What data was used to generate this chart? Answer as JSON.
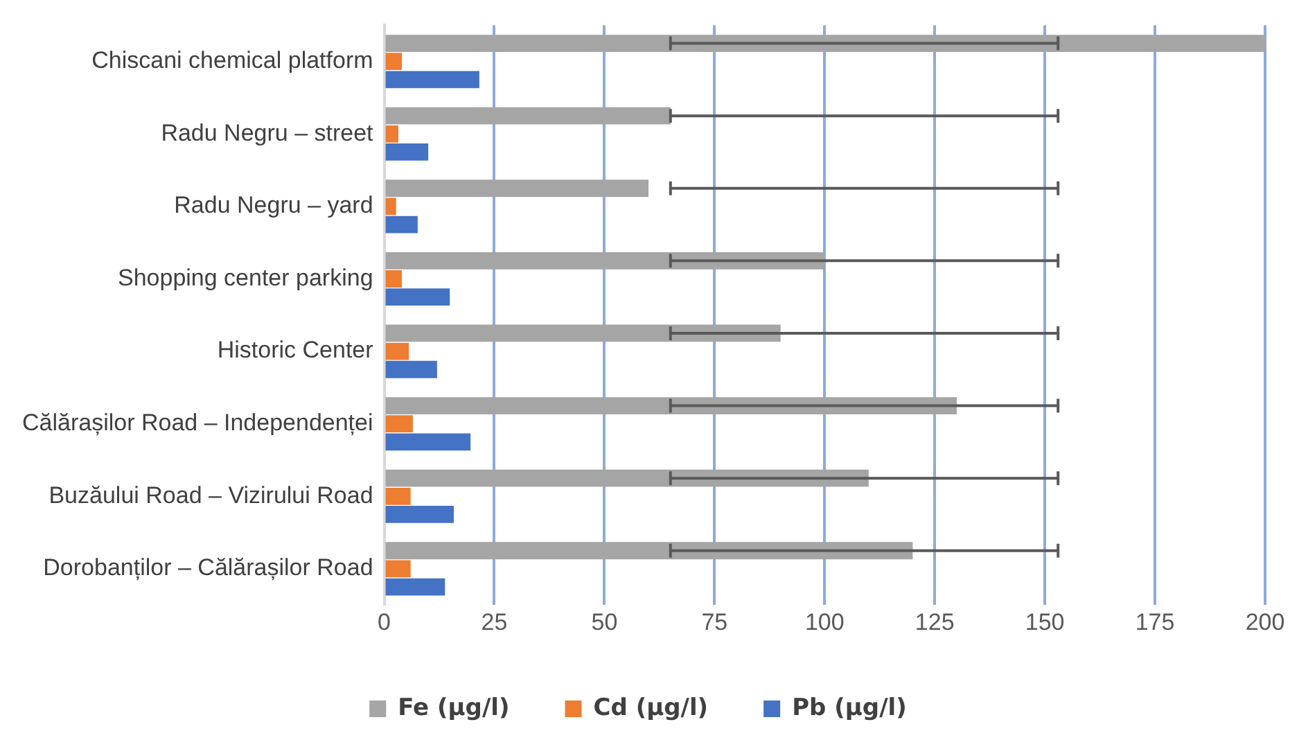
{
  "chart_data": {
    "type": "bar",
    "orientation": "horizontal",
    "categories": [
      "Chiscani chemical platform",
      "Radu Negru – street",
      "Radu Negru – yard",
      "Shopping center parking",
      "Historic Center",
      "Călărașilor Road – Independenței",
      "Buzăului Road – Vizirului Road",
      "Dorobanților – Călărașilor Road"
    ],
    "series": [
      {
        "name": "Fe (µg/l)",
        "color": "#a5a5a5",
        "values": [
          200,
          65,
          60,
          100,
          90,
          130,
          110,
          120
        ],
        "errors": [
          [
            65,
            153
          ],
          [
            65,
            153
          ],
          [
            65,
            153
          ],
          [
            65,
            153
          ],
          [
            65,
            153
          ],
          [
            65,
            153
          ],
          [
            65,
            153
          ],
          [
            65,
            153
          ]
        ]
      },
      {
        "name": "Cd (µg/l)",
        "color": "#ed7d31",
        "values": [
          4,
          3.2,
          2.7,
          4,
          5.6,
          6.5,
          6,
          6
        ]
      },
      {
        "name": "Pb (µg/l)",
        "color": "#4472c4",
        "values": [
          21.6,
          10,
          7.6,
          14.9,
          12,
          19.6,
          15.8,
          13.8
        ]
      }
    ],
    "xlim": [
      0,
      200
    ],
    "xticks": [
      0,
      25,
      50,
      75,
      100,
      125,
      150,
      175,
      200
    ],
    "grid": "x",
    "legend": "bottom"
  }
}
